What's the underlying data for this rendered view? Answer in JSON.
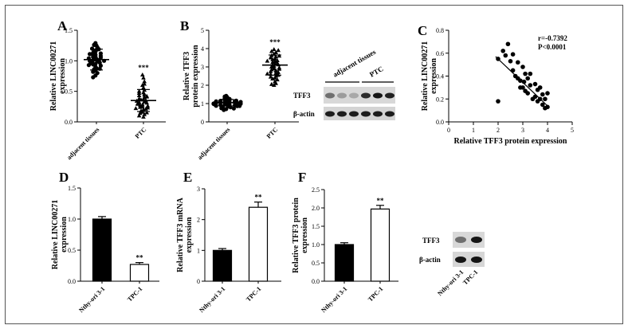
{
  "chart_data": [
    {
      "panel": "A",
      "type": "scatter",
      "ylabel": [
        "Relative LINC00271",
        "expression"
      ],
      "ylim": [
        0.0,
        1.5
      ],
      "yticks": [
        "0.0",
        "0.5",
        "1.0",
        "1.5"
      ],
      "categories": [
        "adjacent tissues",
        "PTC"
      ],
      "means": [
        1.02,
        0.35
      ],
      "sd": [
        0.17,
        0.18
      ],
      "significance": [
        "",
        "***"
      ],
      "points": [
        [
          1.29,
          1.25,
          1.22,
          1.2,
          1.18,
          1.16,
          1.15,
          1.13,
          1.12,
          1.1,
          1.09,
          1.08,
          1.07,
          1.06,
          1.05,
          1.04,
          1.03,
          1.02,
          1.01,
          1.0,
          0.99,
          0.98,
          0.97,
          0.96,
          0.95,
          0.94,
          0.92,
          0.9,
          0.88,
          0.86,
          0.84,
          0.82,
          0.8,
          0.76,
          0.73,
          1.26,
          1.19,
          1.11,
          1.0,
          0.93,
          0.87
        ],
        [
          0.77,
          0.72,
          0.66,
          0.6,
          0.56,
          0.52,
          0.5,
          0.48,
          0.45,
          0.43,
          0.42,
          0.4,
          0.38,
          0.37,
          0.36,
          0.35,
          0.34,
          0.33,
          0.32,
          0.31,
          0.3,
          0.28,
          0.27,
          0.26,
          0.25,
          0.24,
          0.23,
          0.22,
          0.2,
          0.18,
          0.16,
          0.14,
          0.12,
          0.1,
          0.08,
          0.62,
          0.47,
          0.41,
          0.29,
          0.21,
          0.15
        ]
      ]
    },
    {
      "panel": "B",
      "type": "scatter",
      "ylabel": [
        "Relative TFF3",
        "protein expression"
      ],
      "ylim": [
        0,
        5
      ],
      "yticks": [
        "0",
        "1",
        "2",
        "3",
        "4",
        "5"
      ],
      "categories": [
        "adjacent tissues",
        "PTC"
      ],
      "means": [
        1.05,
        3.1
      ],
      "sd": [
        0.18,
        0.55
      ],
      "significance": [
        "",
        "***"
      ],
      "points": [
        [
          1.42,
          1.35,
          1.3,
          1.25,
          1.22,
          1.2,
          1.18,
          1.15,
          1.13,
          1.12,
          1.1,
          1.08,
          1.07,
          1.06,
          1.05,
          1.04,
          1.03,
          1.02,
          1.01,
          1.0,
          0.99,
          0.98,
          0.97,
          0.96,
          0.94,
          0.92,
          0.9,
          0.88,
          0.86,
          0.84,
          0.82,
          0.8,
          0.75,
          0.7,
          0.65,
          1.38,
          1.16,
          1.09,
          0.95,
          0.87,
          0.73
        ],
        [
          3.95,
          3.85,
          3.78,
          3.7,
          3.62,
          3.55,
          3.5,
          3.45,
          3.4,
          3.35,
          3.3,
          3.25,
          3.2,
          3.15,
          3.1,
          3.05,
          3.0,
          2.95,
          2.9,
          2.85,
          2.8,
          2.75,
          2.7,
          2.65,
          2.6,
          2.55,
          2.5,
          2.45,
          2.4,
          2.35,
          2.3,
          2.2,
          2.1,
          2.0,
          3.9,
          3.6,
          3.32,
          3.12,
          2.88,
          2.62,
          2.05
        ]
      ]
    },
    {
      "panel": "C",
      "type": "scatter",
      "xlabel": "Relative TFF3 protein expression",
      "ylabel": [
        "Relative LINC00271",
        "expression"
      ],
      "xlim": [
        0,
        5
      ],
      "ylim": [
        0.0,
        0.8
      ],
      "xticks": [
        "0",
        "1",
        "2",
        "3",
        "4",
        "5"
      ],
      "yticks": [
        "0.0",
        "0.2",
        "0.4",
        "0.6",
        "0.8"
      ],
      "annotation": [
        "r=-0.7392",
        "P<0.0001"
      ],
      "fit": [
        [
          1.9,
          0.57
        ],
        [
          4.0,
          0.14
        ]
      ],
      "points": [
        [
          2.0,
          0.18
        ],
        [
          2.0,
          0.55
        ],
        [
          2.2,
          0.62
        ],
        [
          2.3,
          0.58
        ],
        [
          2.4,
          0.68
        ],
        [
          2.5,
          0.53
        ],
        [
          2.6,
          0.59
        ],
        [
          2.6,
          0.45
        ],
        [
          2.7,
          0.4
        ],
        [
          2.8,
          0.38
        ],
        [
          2.8,
          0.52
        ],
        [
          2.9,
          0.36
        ],
        [
          3.0,
          0.48
        ],
        [
          3.0,
          0.3
        ],
        [
          3.05,
          0.35
        ],
        [
          3.1,
          0.42
        ],
        [
          3.1,
          0.27
        ],
        [
          3.2,
          0.38
        ],
        [
          3.2,
          0.25
        ],
        [
          3.3,
          0.32
        ],
        [
          3.4,
          0.2
        ],
        [
          3.5,
          0.33
        ],
        [
          3.6,
          0.28
        ],
        [
          3.6,
          0.18
        ],
        [
          3.7,
          0.3
        ],
        [
          3.7,
          0.2
        ],
        [
          3.8,
          0.24
        ],
        [
          3.8,
          0.15
        ],
        [
          3.9,
          0.12
        ],
        [
          3.9,
          0.2
        ],
        [
          4.0,
          0.25
        ],
        [
          4.0,
          0.13
        ],
        [
          3.3,
          0.42
        ],
        [
          2.9,
          0.3
        ],
        [
          3.5,
          0.22
        ]
      ]
    },
    {
      "panel": "D",
      "type": "bar",
      "ylabel": [
        "Relative LINC00271",
        "expression"
      ],
      "ylim": [
        0.0,
        1.5
      ],
      "yticks": [
        "0.0",
        "0.5",
        "1.0",
        "1.5"
      ],
      "categories": [
        "Nthy-ori 3-1",
        "TPC-1"
      ],
      "values": [
        1.0,
        0.27
      ],
      "errors": [
        0.04,
        0.03
      ],
      "fills": [
        "#000000",
        "#ffffff"
      ],
      "significance": [
        "",
        "**"
      ]
    },
    {
      "panel": "E",
      "type": "bar",
      "ylabel": [
        "Relative TFF3 mRNA",
        "expression"
      ],
      "ylim": [
        0,
        3
      ],
      "yticks": [
        "0",
        "1",
        "2",
        "3"
      ],
      "categories": [
        "Nthy-ori 3-1",
        "TPC-1"
      ],
      "values": [
        1.0,
        2.4
      ],
      "errors": [
        0.06,
        0.17
      ],
      "fills": [
        "#000000",
        "#ffffff"
      ],
      "significance": [
        "",
        "**"
      ]
    },
    {
      "panel": "F",
      "type": "bar",
      "ylabel": [
        "Relative TFF3 protein",
        "expression"
      ],
      "ylim": [
        0.0,
        2.5
      ],
      "yticks": [
        "0.0",
        "0.5",
        "1.0",
        "1.5",
        "2.0",
        "2.5"
      ],
      "categories": [
        "Nthy-ori 3-1",
        "TPC-1"
      ],
      "values": [
        1.0,
        1.97
      ],
      "errors": [
        0.05,
        0.1
      ],
      "fills": [
        "#000000",
        "#ffffff"
      ],
      "significance": [
        "",
        "**"
      ]
    }
  ],
  "blots": [
    {
      "id": "blot-b",
      "lane_groups": [
        "adjacent tissues",
        "PTC"
      ],
      "rows": [
        {
          "label": "TFF3",
          "intensities": [
            0.55,
            0.35,
            0.3,
            0.85,
            0.95,
            0.9
          ]
        },
        {
          "label": "β-actin",
          "intensities": [
            0.92,
            0.92,
            0.92,
            0.92,
            0.92,
            0.92
          ]
        }
      ]
    },
    {
      "id": "blot-f",
      "lanes": [
        "Nthy-ori 3-1",
        "TPC-1"
      ],
      "rows": [
        {
          "label": "TFF3",
          "intensities": [
            0.55,
            0.95
          ]
        },
        {
          "label": "β-actin",
          "intensities": [
            0.95,
            0.95
          ]
        }
      ]
    }
  ]
}
